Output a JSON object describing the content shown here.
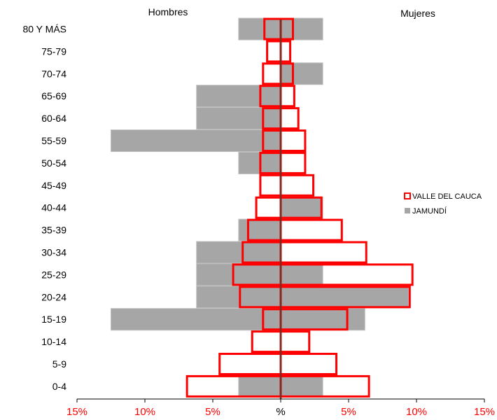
{
  "chart_data": {
    "type": "bar",
    "orientation": "horizontal",
    "subtype": "population-pyramid",
    "title": "",
    "left_label": "Hombres",
    "right_label": "Mujeres",
    "categories": [
      "80 Y MÁS",
      "75-79",
      "70-74",
      "65-69",
      "60-64",
      "55-59",
      "50-54",
      "45-49",
      "40-44",
      "35-39",
      "30-34",
      "25-29",
      "20-24",
      "15-19",
      "10-14",
      "5-9",
      "0-4"
    ],
    "x_ticks": [
      "15%",
      "10%",
      "5%",
      "%",
      "5%",
      "10%",
      "15%"
    ],
    "x_tick_values": [
      -15,
      -10,
      -5,
      0,
      5,
      10,
      15
    ],
    "xlim": [
      -15,
      15
    ],
    "series": [
      {
        "name": "JAMUNDÍ",
        "men": [
          3.1,
          0,
          0,
          6.2,
          6.2,
          12.5,
          3.1,
          0,
          0,
          3.1,
          6.2,
          6.2,
          6.2,
          12.5,
          0,
          0,
          3.1
        ],
        "women": [
          3.1,
          0,
          3.1,
          0,
          0,
          0,
          0,
          0,
          3.1,
          0,
          0,
          3.1,
          9.4,
          6.2,
          0,
          0,
          3.1
        ]
      },
      {
        "name": "VALLE DEL CAUCA",
        "men": [
          1.2,
          1.0,
          1.3,
          1.5,
          1.3,
          1.3,
          1.5,
          1.5,
          1.8,
          2.4,
          2.8,
          3.5,
          3.0,
          1.3,
          2.1,
          4.5,
          6.9
        ],
        "women": [
          0.9,
          0.7,
          0.9,
          1.0,
          1.3,
          1.8,
          1.8,
          2.4,
          3.0,
          4.5,
          6.3,
          9.7,
          9.5,
          4.9,
          2.1,
          4.1,
          6.5
        ]
      }
    ],
    "legend_position": "right",
    "grid": false,
    "colors": {
      "JAMUNDÍ": "#a6a6a6",
      "VALLE DEL CAUCA": "#ff0000",
      "tick_labels": "#ff0000",
      "axis": "#000000",
      "center_line": "#7b2c20"
    }
  }
}
